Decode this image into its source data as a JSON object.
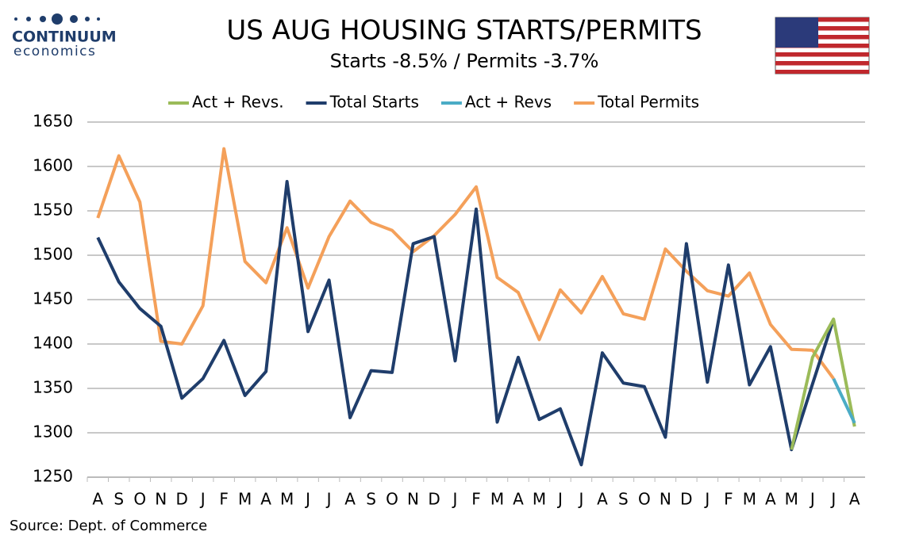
{
  "chart_data": {
    "type": "line",
    "title": "US AUG HOUSING STARTS/PERMITS",
    "subtitle": "Starts  -8.5% / Permits -3.7%",
    "source": "Source: Dept. of Commerce",
    "logo": {
      "name": "CONTINUUM",
      "tagline": "economics"
    },
    "categories": [
      "A",
      "S",
      "O",
      "N",
      "D",
      "J",
      "F",
      "M",
      "A",
      "M",
      "J",
      "J",
      "A",
      "S",
      "O",
      "N",
      "D",
      "J",
      "F",
      "M",
      "A",
      "M",
      "J",
      "J",
      "A",
      "S",
      "O",
      "N",
      "D",
      "J",
      "F",
      "M",
      "A",
      "M",
      "J",
      "J",
      "A"
    ],
    "series": [
      {
        "name": "Act + Revs.",
        "color": "#9bbb59",
        "values": [
          null,
          null,
          null,
          null,
          null,
          null,
          null,
          null,
          null,
          null,
          null,
          null,
          null,
          null,
          null,
          null,
          null,
          null,
          null,
          null,
          null,
          null,
          null,
          null,
          null,
          null,
          null,
          null,
          null,
          null,
          null,
          null,
          null,
          1281,
          1385,
          1428,
          1307
        ]
      },
      {
        "name": "Total Starts",
        "color": "#1f3d6b",
        "values": [
          1520,
          1470,
          1440,
          1420,
          1339,
          1361,
          1404,
          1342,
          1369,
          1583,
          1414,
          1472,
          1317,
          1370,
          1368,
          1513,
          1521,
          1381,
          1552,
          1312,
          1385,
          1315,
          1327,
          1264,
          1390,
          1356,
          1352,
          1295,
          1513,
          1357,
          1489,
          1354,
          1397,
          1281,
          1355,
          1428,
          null
        ]
      },
      {
        "name": "Act + Revs",
        "color": "#4bacc6",
        "values": [
          null,
          null,
          null,
          null,
          null,
          null,
          null,
          null,
          null,
          null,
          null,
          null,
          null,
          null,
          null,
          null,
          null,
          null,
          null,
          null,
          null,
          null,
          null,
          null,
          null,
          null,
          null,
          null,
          null,
          null,
          null,
          null,
          null,
          null,
          null,
          1361,
          1311
        ]
      },
      {
        "name": "Total Permits",
        "color": "#f4a05a",
        "values": [
          1542,
          1612,
          1560,
          1403,
          1400,
          1443,
          1620,
          1493,
          1469,
          1531,
          1463,
          1521,
          1561,
          1537,
          1528,
          1504,
          1522,
          1546,
          1577,
          1475,
          1458,
          1405,
          1461,
          1435,
          1476,
          1434,
          1428,
          1507,
          1482,
          1460,
          1454,
          1480,
          1422,
          1394,
          1393,
          1361,
          null
        ]
      }
    ],
    "ylim": [
      1250,
      1650
    ],
    "yticks": [
      1250,
      1300,
      1350,
      1400,
      1450,
      1500,
      1550,
      1600,
      1650
    ],
    "grid": true,
    "legend": "top"
  }
}
